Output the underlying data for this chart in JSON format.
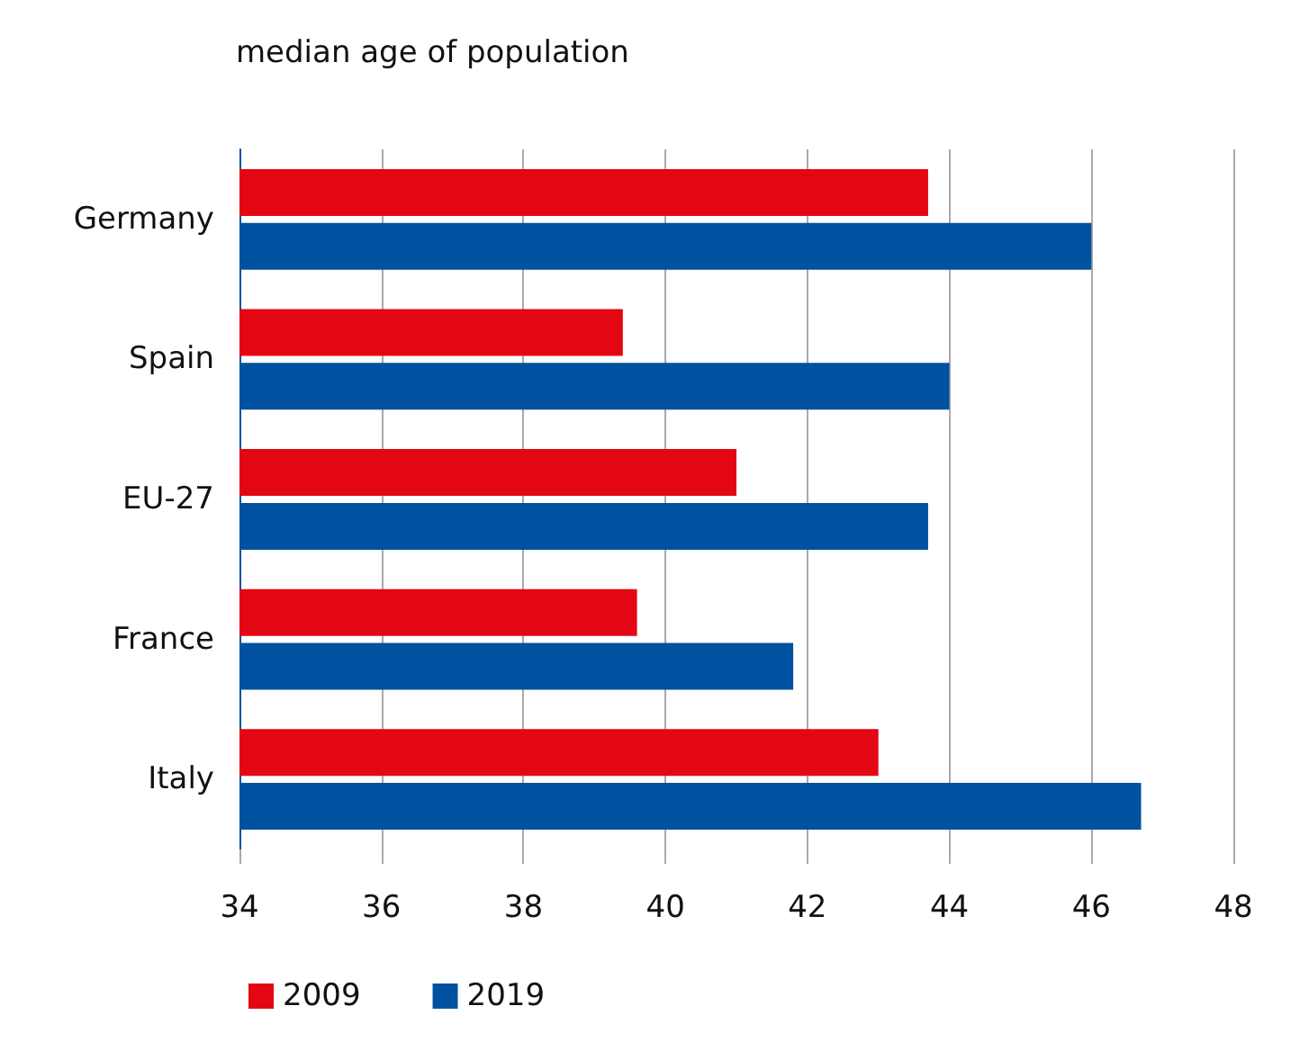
{
  "chart_data": {
    "type": "bar",
    "orientation": "horizontal",
    "title": "median age of population",
    "categories": [
      "Germany",
      "Spain",
      "EU-27",
      "France",
      "Italy"
    ],
    "series": [
      {
        "name": "2009",
        "color": "#e30613",
        "values": [
          43.7,
          39.4,
          41.0,
          39.6,
          43.0
        ]
      },
      {
        "name": "2019",
        "color": "#0052a0",
        "values": [
          46.0,
          44.0,
          43.7,
          41.8,
          46.7
        ]
      }
    ],
    "xlim": [
      34,
      48
    ],
    "xticks": [
      34,
      36,
      38,
      40,
      42,
      44,
      46,
      48
    ],
    "grid": "x",
    "legend": "bottom left"
  }
}
